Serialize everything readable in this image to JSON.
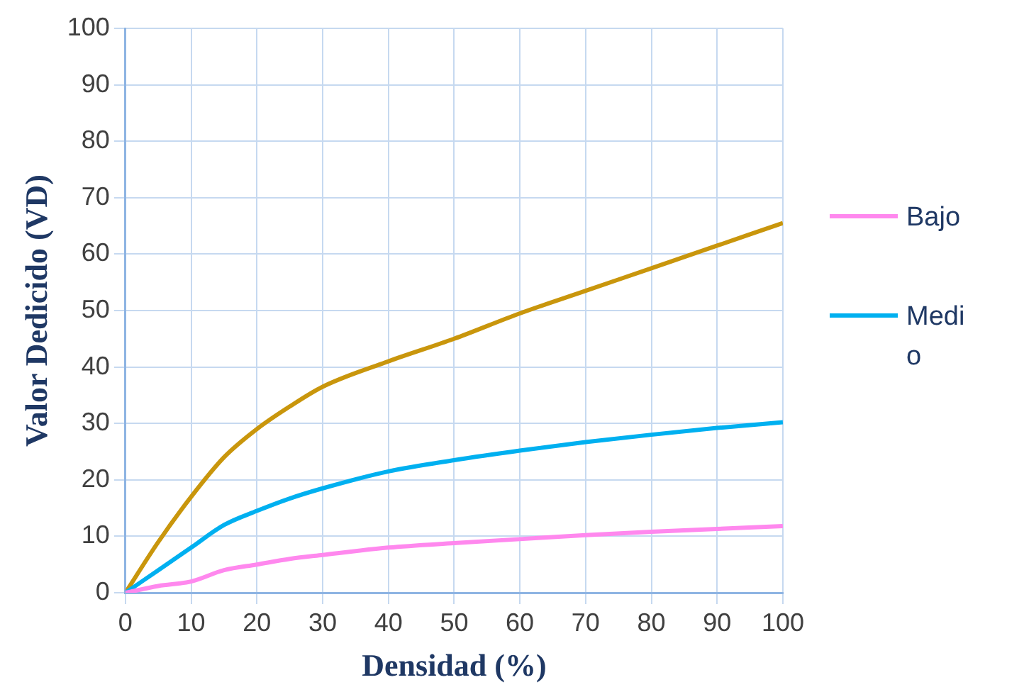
{
  "chart_data": {
    "type": "line",
    "xlabel": "Densidad (%)",
    "ylabel": "Valor Dedicido (VD)",
    "x": [
      0,
      5,
      10,
      15,
      20,
      25,
      30,
      40,
      50,
      60,
      70,
      80,
      90,
      100
    ],
    "series": [
      {
        "name": "Bajo",
        "color": "#ff88ee",
        "values": [
          0,
          1.2,
          2,
          4,
          5,
          6,
          6.7,
          8,
          8.8,
          9.5,
          10.2,
          10.8,
          11.3,
          11.8
        ]
      },
      {
        "name": "Medio",
        "color": "#00b0f0",
        "values": [
          0,
          4,
          8,
          12,
          14.5,
          16.7,
          18.5,
          21.5,
          23.5,
          25.2,
          26.7,
          28,
          29.2,
          30.2
        ]
      },
      {
        "color": "#c9960c",
        "values": [
          0,
          9,
          17,
          24,
          29,
          33,
          36.5,
          41,
          45,
          49.5,
          53.5,
          57.5,
          61.5,
          65.5
        ]
      }
    ],
    "xlim": [
      0,
      100
    ],
    "xticks": [
      0,
      10,
      20,
      30,
      40,
      50,
      60,
      70,
      80,
      90,
      100
    ],
    "ylim": [
      0,
      100
    ],
    "yticks": [
      0,
      10,
      20,
      30,
      40,
      50,
      60,
      70,
      80,
      90,
      100
    ],
    "grid": true,
    "legend": "right",
    "marker": "none",
    "line_style": "solid"
  }
}
